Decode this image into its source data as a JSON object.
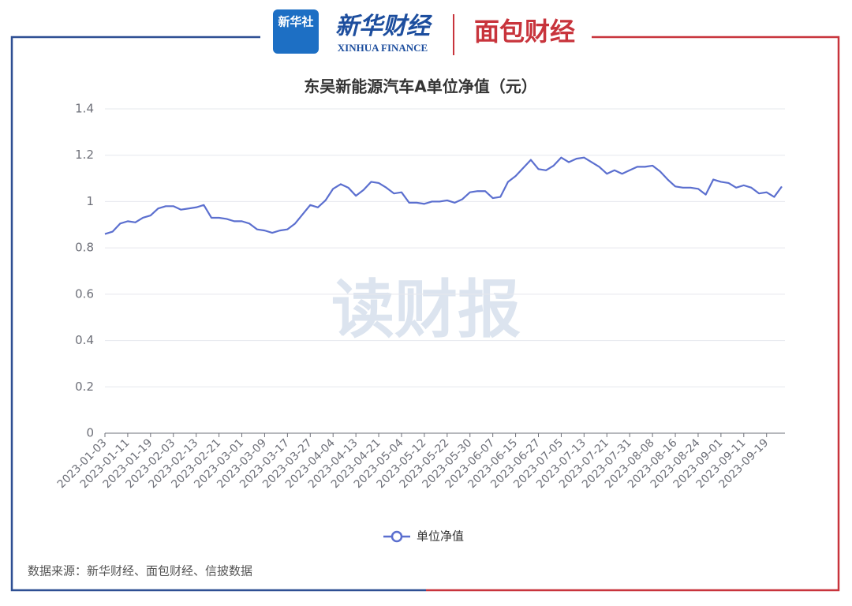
{
  "chart_data": {
    "type": "line",
    "title": "东吴新能源汽车A单位净值（元）",
    "logos": [
      "新华社",
      "新华财经",
      "XINHUA FINANCE",
      "面包财经"
    ],
    "watermark": "读财报",
    "source": "数据来源：新华财经、面包财经、信披数据",
    "categories": [
      "2023-01-03",
      null,
      null,
      "2023-01-11",
      null,
      null,
      "2023-01-19",
      null,
      null,
      "2023-02-03",
      null,
      null,
      "2023-02-13",
      null,
      null,
      "2023-02-21",
      null,
      null,
      "2023-03-01",
      null,
      null,
      "2023-03-09",
      null,
      null,
      "2023-03-17",
      null,
      null,
      "2023-03-27",
      null,
      null,
      "2023-04-04",
      null,
      null,
      "2023-04-13",
      null,
      null,
      "2023-04-21",
      null,
      null,
      "2023-05-04",
      null,
      null,
      "2023-05-12",
      null,
      null,
      "2023-05-22",
      null,
      null,
      "2023-05-30",
      null,
      null,
      "2023-06-07",
      null,
      null,
      "2023-06-15",
      null,
      null,
      "2023-06-27",
      null,
      null,
      "2023-07-05",
      null,
      null,
      "2023-07-13",
      null,
      null,
      "2023-07-21",
      null,
      null,
      "2023-07-31",
      null,
      null,
      "2023-08-08",
      null,
      null,
      "2023-08-16",
      null,
      null,
      "2023-08-24",
      null,
      null,
      "2023-09-01",
      null,
      null,
      "2023-09-11",
      null,
      null,
      "2023-09-19",
      null,
      null
    ],
    "series": [
      {
        "name": "单位净值",
        "color": "#5b6fcf",
        "values": [
          0.86,
          0.87,
          0.905,
          0.915,
          0.91,
          0.93,
          0.94,
          0.97,
          0.98,
          0.98,
          0.965,
          0.97,
          0.975,
          0.985,
          0.93,
          0.93,
          0.925,
          0.915,
          0.915,
          0.905,
          0.88,
          0.875,
          0.865,
          0.875,
          0.88,
          0.905,
          0.945,
          0.985,
          0.975,
          1.005,
          1.055,
          1.075,
          1.06,
          1.025,
          1.05,
          1.085,
          1.08,
          1.06,
          1.035,
          1.04,
          0.995,
          0.995,
          0.99,
          1.0,
          1.0,
          1.005,
          0.995,
          1.01,
          1.04,
          1.045,
          1.045,
          1.015,
          1.02,
          1.085,
          1.11,
          1.145,
          1.18,
          1.14,
          1.135,
          1.155,
          1.19,
          1.17,
          1.185,
          1.19,
          1.17,
          1.15,
          1.12,
          1.135,
          1.12,
          1.135,
          1.15,
          1.15,
          1.155,
          1.13,
          1.095,
          1.065,
          1.06,
          1.06,
          1.055,
          1.03,
          1.095,
          1.085,
          1.08,
          1.06,
          1.07,
          1.06,
          1.035,
          1.04,
          1.02,
          1.065
        ]
      }
    ],
    "ylim": [
      0,
      1.4
    ],
    "yticks": [
      0,
      0.2,
      0.4,
      0.6,
      0.8,
      1,
      1.2,
      1.4
    ],
    "grid": true,
    "legend": "bottom"
  }
}
